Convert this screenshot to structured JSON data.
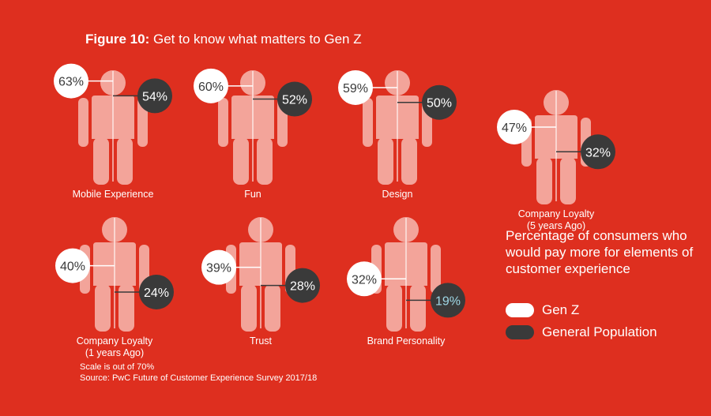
{
  "title": {
    "bold": "Figure 10:",
    "rest": " Get to know what matters to Gen Z"
  },
  "chart_data": {
    "type": "pictogram",
    "title": "Figure 10: Get to know what matters to Gen Z",
    "scale_max": 70,
    "series": [
      {
        "name": "Gen Z",
        "color": "#ffffff"
      },
      {
        "name": "General Population",
        "color": "#3a3a3a"
      }
    ],
    "categories": [
      {
        "label": [
          "Mobile Experience"
        ],
        "gen_z": 63,
        "general": 54
      },
      {
        "label": [
          "Fun"
        ],
        "gen_z": 60,
        "general": 52
      },
      {
        "label": [
          "Design"
        ],
        "gen_z": 59,
        "general": 50
      },
      {
        "label": [
          "Company Loyalty",
          "(5 years Ago)"
        ],
        "gen_z": 47,
        "general": 32
      },
      {
        "label": [
          "Company Loyalty",
          "(1 years Ago)"
        ],
        "gen_z": 40,
        "general": 24
      },
      {
        "label": [
          "Trust"
        ],
        "gen_z": 39,
        "general": 28
      },
      {
        "label": [
          "Brand Personality"
        ],
        "gen_z": 32,
        "general": 19
      }
    ],
    "value_suffix": "%"
  },
  "legend": {
    "title": "Percentage of consumers who would pay more for elements of customer experience",
    "gen_z": "Gen Z",
    "general": "General Population"
  },
  "notes": {
    "scale": "Scale is out of 70%",
    "source": "Source: PwC Future of Customer Experience Survey 2017/18"
  },
  "colors": {
    "background": "#de2f1f",
    "figure": "#f3a49a",
    "gen_z": "#ffffff",
    "general": "#3a3a3a",
    "general_text": "#ffffff",
    "gen_z_text": "#3a3a3a",
    "highlight_text": "#9fd8e6"
  }
}
